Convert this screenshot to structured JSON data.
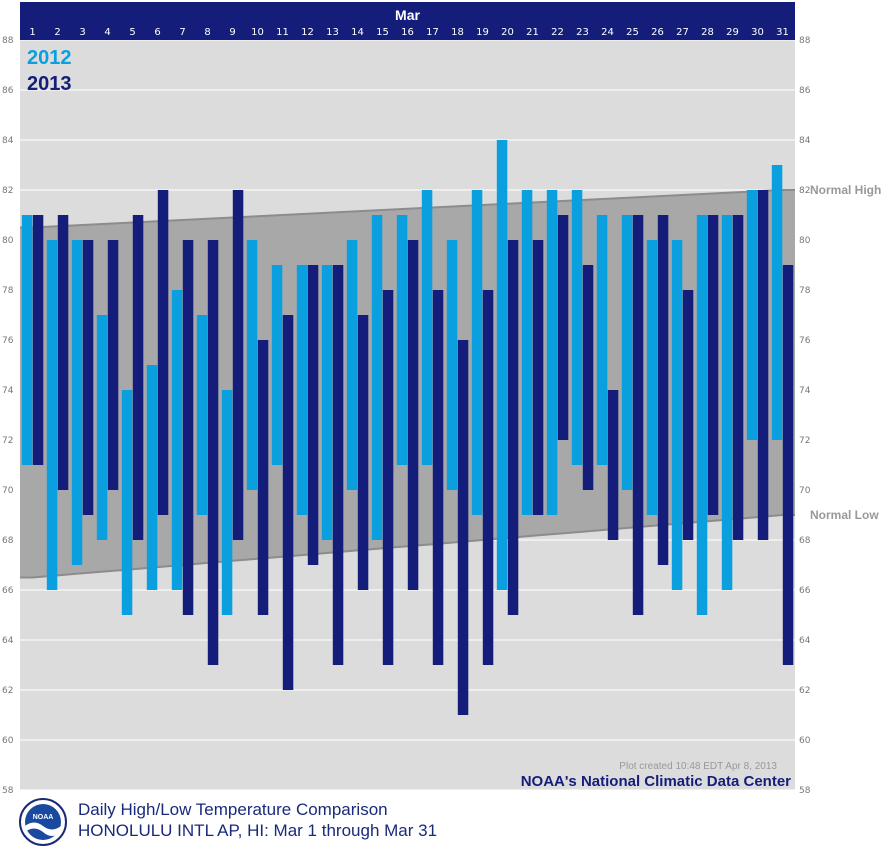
{
  "chart_data": {
    "type": "bar",
    "month_label": "Mar",
    "days": [
      1,
      2,
      3,
      4,
      5,
      6,
      7,
      8,
      9,
      10,
      11,
      12,
      13,
      14,
      15,
      16,
      17,
      18,
      19,
      20,
      21,
      22,
      23,
      24,
      25,
      26,
      27,
      28,
      29,
      30,
      31
    ],
    "ylim": [
      58,
      88
    ],
    "yticks": [
      58,
      60,
      62,
      64,
      66,
      68,
      70,
      72,
      74,
      76,
      78,
      80,
      82,
      84,
      86,
      88
    ],
    "grid": true,
    "legend_placement": "top-left",
    "series": [
      {
        "name": "2012",
        "color": "#0aa0e0",
        "high": [
          81,
          80,
          80,
          77,
          74,
          75,
          78,
          77,
          74,
          80,
          79,
          79,
          79,
          80,
          81,
          81,
          82,
          80,
          82,
          84,
          82,
          82,
          82,
          81,
          81,
          80,
          80,
          81,
          81,
          82,
          83
        ],
        "low": [
          71,
          66,
          67,
          68,
          65,
          66,
          66,
          69,
          65,
          70,
          71,
          69,
          68,
          70,
          68,
          71,
          71,
          70,
          69,
          66,
          69,
          69,
          71,
          71,
          70,
          69,
          66,
          65,
          66,
          72,
          72
        ]
      },
      {
        "name": "2013",
        "color": "#141e7a",
        "high": [
          81,
          81,
          80,
          80,
          81,
          82,
          80,
          80,
          82,
          76,
          77,
          79,
          79,
          77,
          78,
          80,
          78,
          76,
          78,
          80,
          80,
          81,
          79,
          74,
          81,
          81,
          78,
          81,
          81,
          82,
          79
        ],
        "low": [
          71,
          70,
          69,
          70,
          68,
          69,
          65,
          63,
          68,
          65,
          62,
          67,
          63,
          66,
          63,
          66,
          63,
          61,
          63,
          65,
          69,
          72,
          70,
          68,
          65,
          67,
          68,
          69,
          68,
          68,
          63
        ]
      }
    ],
    "normal_high": {
      "label": "Normal High",
      "start": 80.5,
      "end": 82.0
    },
    "normal_low": {
      "label": "Normal Low",
      "start": 66.5,
      "end": 69.0
    },
    "plot_note": "Plot created 10:48 EDT Apr 8, 2013",
    "source": "NOAA's National Climatic Data Center",
    "title": "Daily High/Low Temperature Comparison",
    "subtitle": "HONOLULU INTL AP, HI: Mar 1 through Mar 31"
  },
  "logo_text": "NOAA"
}
